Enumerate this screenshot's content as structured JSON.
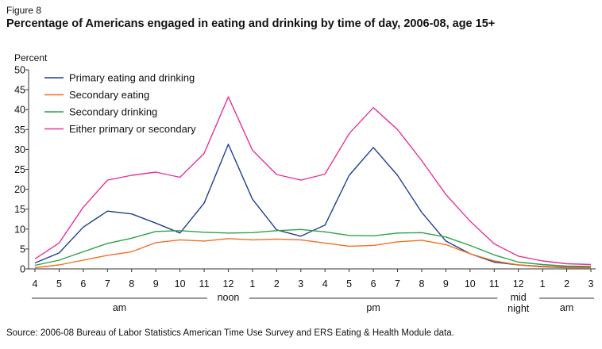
{
  "figure_label": "Figure 8",
  "source": "Source:  2006-08 Bureau of Labor Statistics American Time Use Survey and ERS Eating & Health Module data.",
  "chart_data": {
    "type": "line",
    "title": "Percentage of Americans engaged in eating and drinking by time of day, 2006-08, age 15+",
    "ylabel": "Percent",
    "xlabel": "",
    "ylim": [
      0,
      50
    ],
    "yticks": [
      0,
      5,
      10,
      15,
      20,
      25,
      30,
      35,
      40,
      45,
      50
    ],
    "x": [
      "4",
      "5",
      "6",
      "7",
      "8",
      "9",
      "10",
      "11",
      "12",
      "1",
      "2",
      "3",
      "4",
      "5",
      "6",
      "7",
      "8",
      "9",
      "10",
      "11",
      "12",
      "1",
      "2",
      "3"
    ],
    "periods": [
      {
        "label": "am",
        "from": 0,
        "to": 7
      },
      {
        "label": "noon",
        "from": 8,
        "to": 8
      },
      {
        "label": "pm",
        "from": 9,
        "to": 19
      },
      {
        "label": "mid night",
        "lines": [
          "mid",
          "night"
        ],
        "from": 20,
        "to": 20
      },
      {
        "label": "am",
        "from": 21,
        "to": 23
      }
    ],
    "legend_position": "top-left",
    "grid": false,
    "series": [
      {
        "name": "Primary eating and drinking",
        "color": "#1f3f8f",
        "values": [
          1.5,
          4,
          10.5,
          14.5,
          13.8,
          11.5,
          9,
          16.5,
          31.3,
          17.5,
          9.8,
          8.2,
          11,
          23.5,
          30.5,
          23.5,
          14.2,
          7,
          3.8,
          1.7,
          1,
          0.6,
          0.4,
          0.4
        ]
      },
      {
        "name": "Secondary eating",
        "color": "#f07020",
        "values": [
          0.3,
          1,
          2.2,
          3.4,
          4.3,
          6.6,
          7.3,
          7,
          7.6,
          7.3,
          7.5,
          7.3,
          6.5,
          5.7,
          5.9,
          6.8,
          7.2,
          6.1,
          3.8,
          2,
          1,
          0.5,
          0.3,
          0.3
        ]
      },
      {
        "name": "Secondary drinking",
        "color": "#2ea04a",
        "values": [
          0.9,
          2.2,
          4.3,
          6.4,
          7.7,
          9.4,
          9.6,
          9.2,
          9,
          9.1,
          9.6,
          9.9,
          9.3,
          8.4,
          8.3,
          9,
          9.1,
          8,
          5.9,
          3.5,
          1.7,
          1.1,
          0.7,
          0.6
        ]
      },
      {
        "name": "Either primary or secondary",
        "color": "#e8329a",
        "values": [
          2.5,
          6.5,
          15.5,
          22.3,
          23.5,
          24.3,
          23,
          29,
          43.2,
          29.8,
          23.7,
          22.3,
          23.8,
          34,
          40.5,
          35,
          27.2,
          18.7,
          12,
          6.3,
          3.2,
          2,
          1.3,
          1.1
        ]
      }
    ]
  }
}
